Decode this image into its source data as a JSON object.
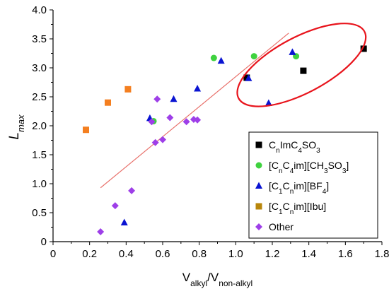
{
  "chart_data": {
    "type": "scatter",
    "xlabel": {
      "main": "V",
      "sub1": "alkyl",
      "slash": "/V",
      "sub2": "non-alkyl"
    },
    "ylabel": {
      "main": "L",
      "sub": "max"
    },
    "xlim": [
      0,
      1.8
    ],
    "ylim": [
      0,
      4.0
    ],
    "xticks": [
      "0",
      "0.2",
      "0.4",
      "0.6",
      "0.8",
      "1.0",
      "1.2",
      "1.4",
      "1.6",
      "1.8"
    ],
    "yticks": [
      "0",
      "0.5",
      "1.0",
      "1.5",
      "2.0",
      "2.5",
      "3.0",
      "3.5",
      "4.0"
    ],
    "grid": false,
    "legend_position": "bottom-right",
    "series": [
      {
        "legend": {
          "parts": [
            [
              "C",
              ""
            ],
            [
              "n",
              "sub"
            ],
            [
              "ImC",
              ""
            ],
            [
              "4",
              "sub"
            ],
            [
              "SO",
              ""
            ],
            [
              "3",
              "sub"
            ]
          ]
        },
        "marker": "square",
        "color": "#000000",
        "points": [
          [
            1.06,
            2.83
          ],
          [
            1.37,
            2.95
          ],
          [
            1.7,
            3.33
          ]
        ]
      },
      {
        "legend": {
          "parts": [
            [
              "[C",
              ""
            ],
            [
              "n",
              "sub"
            ],
            [
              "C",
              ""
            ],
            [
              "4",
              "sub"
            ],
            [
              "im][CH",
              ""
            ],
            [
              "3",
              "sub"
            ],
            [
              "SO",
              ""
            ],
            [
              "3",
              "sub"
            ],
            [
              "]",
              ""
            ]
          ]
        },
        "marker": "circle",
        "color": "#3fd23f",
        "points": [
          [
            0.55,
            2.08
          ],
          [
            0.88,
            3.17
          ],
          [
            1.1,
            3.2
          ],
          [
            1.33,
            3.2
          ]
        ]
      },
      {
        "legend": {
          "parts": [
            [
              "[C",
              ""
            ],
            [
              "1",
              "sub"
            ],
            [
              "C",
              ""
            ],
            [
              "n",
              "sub"
            ],
            [
              "im][BF",
              ""
            ],
            [
              "4",
              "sub"
            ],
            [
              "]",
              ""
            ]
          ]
        },
        "marker": "triangle",
        "color": "#0a14d2",
        "points": [
          [
            0.39,
            0.33
          ],
          [
            0.53,
            2.13
          ],
          [
            0.66,
            2.46
          ],
          [
            0.79,
            2.64
          ],
          [
            0.92,
            3.12
          ],
          [
            1.07,
            2.82
          ],
          [
            1.18,
            2.39
          ],
          [
            1.31,
            3.27
          ]
        ]
      },
      {
        "legend": {
          "parts": [
            [
              "[C",
              ""
            ],
            [
              "1",
              "sub"
            ],
            [
              "C",
              ""
            ],
            [
              "n",
              "sub"
            ],
            [
              "im][Ibu]",
              ""
            ]
          ]
        },
        "legend_marker_color": "#b8860b",
        "marker": "square",
        "color": "#f47f20",
        "points": [
          [
            0.18,
            1.93
          ],
          [
            0.3,
            2.4
          ],
          [
            0.41,
            2.63
          ]
        ]
      },
      {
        "legend": {
          "parts": [
            [
              "Other",
              ""
            ]
          ]
        },
        "marker": "diamond",
        "color": "#9e3fe8",
        "points": [
          [
            0.26,
            0.17
          ],
          [
            0.34,
            0.62
          ],
          [
            0.43,
            0.88
          ],
          [
            0.54,
            2.07
          ],
          [
            0.56,
            1.71
          ],
          [
            0.57,
            2.46
          ],
          [
            0.6,
            1.76
          ],
          [
            0.64,
            2.14
          ],
          [
            0.73,
            2.07
          ],
          [
            0.77,
            2.11
          ],
          [
            0.79,
            2.1
          ]
        ]
      }
    ],
    "trendline": {
      "color": "#e8706a",
      "x": [
        0.26,
        1.29
      ],
      "y": [
        0.93,
        3.6
      ]
    },
    "annotation_ellipse": {
      "color": "#e8141c",
      "cx": 1.36,
      "cy": 3.05,
      "rx": 0.39,
      "ry": 0.48,
      "rotation_deg": -28
    }
  }
}
